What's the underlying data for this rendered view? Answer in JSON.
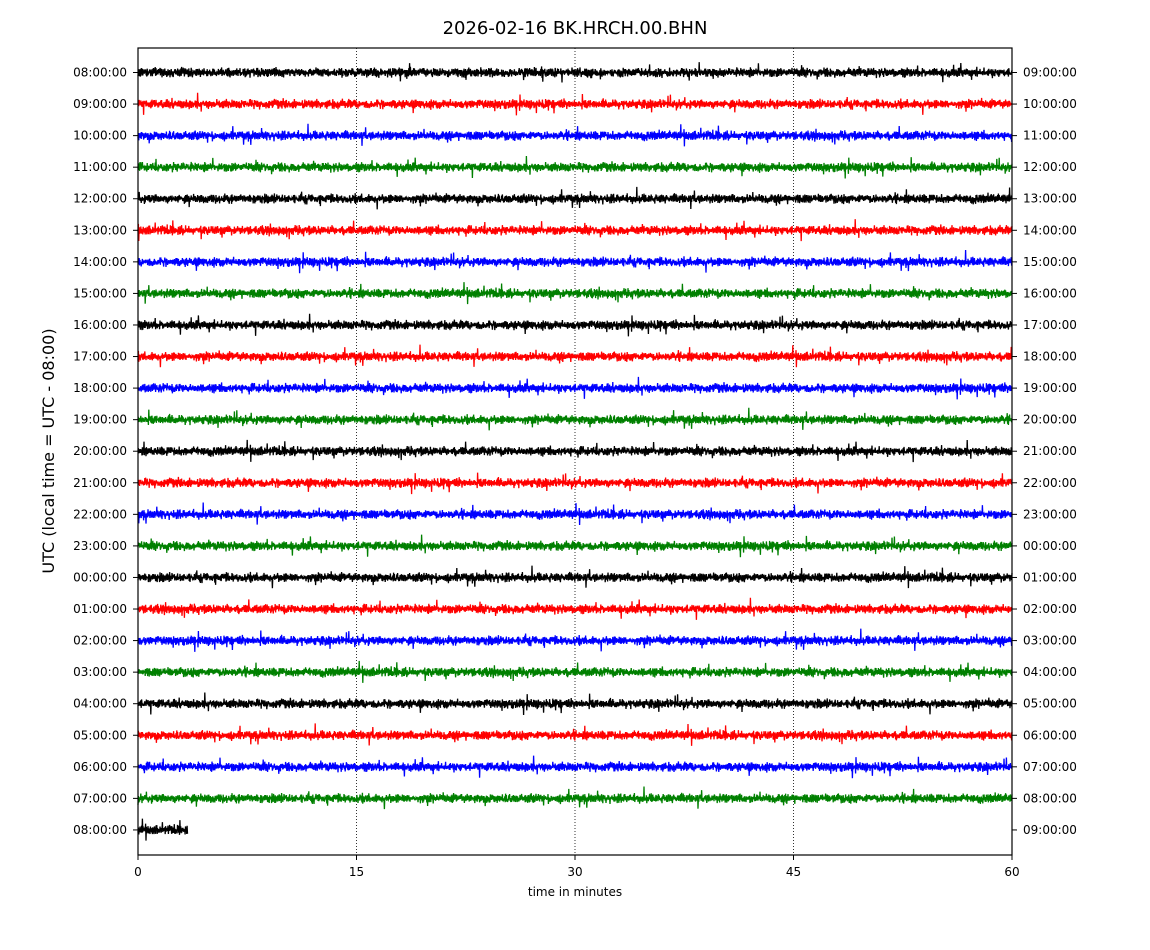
{
  "chart_data": {
    "type": "line",
    "title": "2026-02-16 BK.HRCH.00.BHN",
    "xlabel": "time in minutes",
    "ylabel": "UTC (local time = UTC - 08:00)",
    "xlim": [
      0,
      60
    ],
    "x_ticks": [
      0,
      15,
      30,
      45,
      60
    ],
    "vertical_gridlines": [
      15,
      30,
      45
    ],
    "grid_style": "dotted",
    "colors_cycle": [
      "#000000",
      "#ff0000",
      "#0000ff",
      "#008000"
    ],
    "rows": [
      {
        "left": "08:00:00",
        "right": "09:00:00",
        "color": "#000000",
        "duration_min": 60
      },
      {
        "left": "09:00:00",
        "right": "10:00:00",
        "color": "#ff0000",
        "duration_min": 60
      },
      {
        "left": "10:00:00",
        "right": "11:00:00",
        "color": "#0000ff",
        "duration_min": 60
      },
      {
        "left": "11:00:00",
        "right": "12:00:00",
        "color": "#008000",
        "duration_min": 60
      },
      {
        "left": "12:00:00",
        "right": "13:00:00",
        "color": "#000000",
        "duration_min": 60
      },
      {
        "left": "13:00:00",
        "right": "14:00:00",
        "color": "#ff0000",
        "duration_min": 60
      },
      {
        "left": "14:00:00",
        "right": "15:00:00",
        "color": "#0000ff",
        "duration_min": 60
      },
      {
        "left": "15:00:00",
        "right": "16:00:00",
        "color": "#008000",
        "duration_min": 60
      },
      {
        "left": "16:00:00",
        "right": "17:00:00",
        "color": "#000000",
        "duration_min": 60
      },
      {
        "left": "17:00:00",
        "right": "18:00:00",
        "color": "#ff0000",
        "duration_min": 60
      },
      {
        "left": "18:00:00",
        "right": "19:00:00",
        "color": "#0000ff",
        "duration_min": 60
      },
      {
        "left": "19:00:00",
        "right": "20:00:00",
        "color": "#008000",
        "duration_min": 60
      },
      {
        "left": "20:00:00",
        "right": "21:00:00",
        "color": "#000000",
        "duration_min": 60
      },
      {
        "left": "21:00:00",
        "right": "22:00:00",
        "color": "#ff0000",
        "duration_min": 60
      },
      {
        "left": "22:00:00",
        "right": "23:00:00",
        "color": "#0000ff",
        "duration_min": 60
      },
      {
        "left": "23:00:00",
        "right": "00:00:00",
        "color": "#008000",
        "duration_min": 60
      },
      {
        "left": "00:00:00",
        "right": "01:00:00",
        "color": "#000000",
        "duration_min": 60
      },
      {
        "left": "01:00:00",
        "right": "02:00:00",
        "color": "#ff0000",
        "duration_min": 60
      },
      {
        "left": "02:00:00",
        "right": "03:00:00",
        "color": "#0000ff",
        "duration_min": 60
      },
      {
        "left": "03:00:00",
        "right": "04:00:00",
        "color": "#008000",
        "duration_min": 60
      },
      {
        "left": "04:00:00",
        "right": "05:00:00",
        "color": "#000000",
        "duration_min": 60
      },
      {
        "left": "05:00:00",
        "right": "06:00:00",
        "color": "#ff0000",
        "duration_min": 60
      },
      {
        "left": "06:00:00",
        "right": "07:00:00",
        "color": "#0000ff",
        "duration_min": 60
      },
      {
        "left": "07:00:00",
        "right": "08:00:00",
        "color": "#008000",
        "duration_min": 60
      },
      {
        "left": "08:00:00",
        "right": "09:00:00",
        "color": "#000000",
        "duration_min": 3.4
      }
    ]
  }
}
